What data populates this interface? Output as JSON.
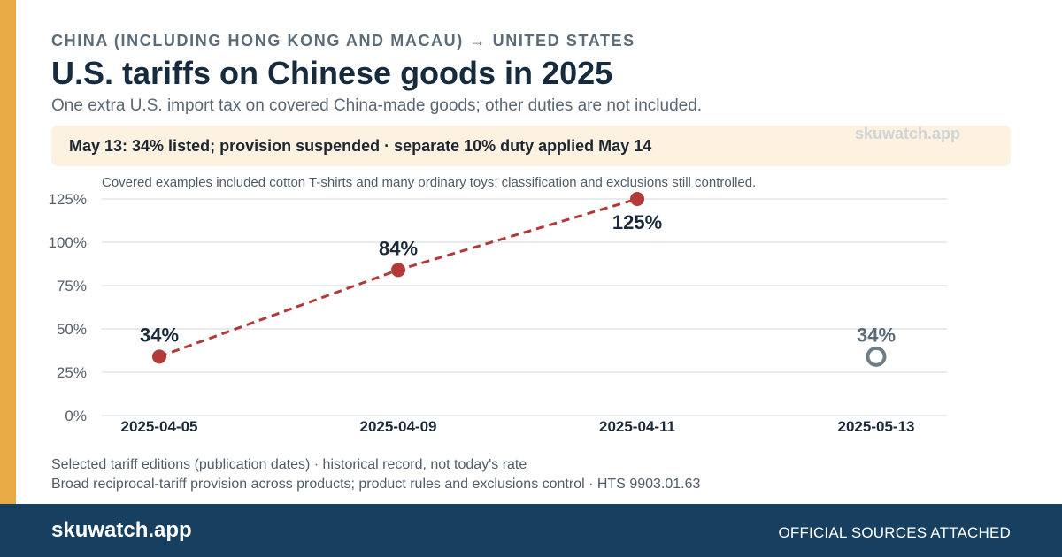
{
  "header": {
    "eyebrow": "CHINA (INCLUDING HONG KONG AND MACAU) → UNITED STATES",
    "title": "U.S. tariffs on Chinese goods in 2025",
    "subtitle": "One extra U.S. import tax on covered China-made goods; other duties are not included."
  },
  "callout": {
    "text": "May 13: 34% listed; provision suspended · separate 10% duty applied May 14",
    "watermark": "skuwatch.app"
  },
  "chart_data": {
    "type": "line",
    "annotation": "Covered examples included cotton T-shirts and many ordinary toys; classification and exclusions still controlled.",
    "categories": [
      "2025-04-05",
      "2025-04-09",
      "2025-04-11",
      "2025-05-13"
    ],
    "values": [
      34,
      84,
      125,
      34
    ],
    "data_labels": [
      "34%",
      "84%",
      "125%",
      "34%"
    ],
    "connected": [
      true,
      true,
      true,
      false
    ],
    "suspended": [
      false,
      false,
      false,
      true
    ],
    "yticks": [
      "0%",
      "25%",
      "50%",
      "75%",
      "100%",
      "125%"
    ],
    "ylim": [
      0,
      125
    ],
    "grid": true,
    "colors": {
      "active": "#b23a38",
      "suspended": "#6f7d87",
      "grid": "#e2e5e8",
      "tick": "#56616c"
    }
  },
  "footnotes": [
    "Selected tariff editions (publication dates) · historical record, not today's rate",
    "Broad reciprocal-tariff provision across products; product rules and exclusions control · HTS 9903.01.63"
  ],
  "footer": {
    "brand": "skuwatch.app",
    "note": "OFFICIAL SOURCES ATTACHED"
  }
}
